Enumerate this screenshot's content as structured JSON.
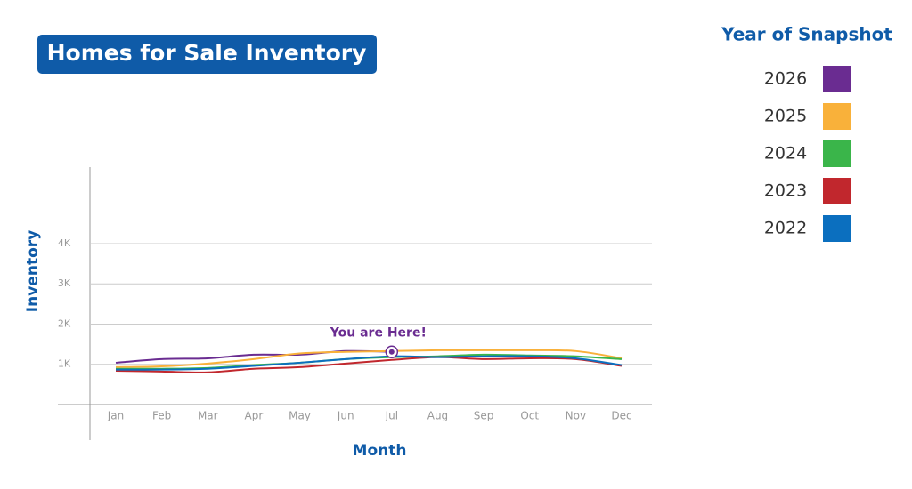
{
  "chart_data": {
    "type": "line",
    "title": "Homes for Sale Inventory",
    "legend_title": "Year of Snapshot",
    "x_label": "Month",
    "y_label": "Inventory",
    "annotation": "You are Here!",
    "categories": [
      "Jan",
      "Feb",
      "Mar",
      "Apr",
      "May",
      "Jun",
      "Jul",
      "Aug",
      "Sep",
      "Oct",
      "Nov",
      "Dec"
    ],
    "ylim": [
      0,
      5900
    ],
    "yticks": [
      {
        "value": 1000,
        "label": "1K"
      },
      {
        "value": 2000,
        "label": "2K"
      },
      {
        "value": 3000,
        "label": "3K"
      },
      {
        "value": 4000,
        "label": "4K"
      }
    ],
    "grid": true,
    "legend": "right",
    "series": [
      {
        "name": "2026",
        "color": "#6a2c91",
        "values": [
          1040,
          1130,
          1150,
          1240,
          1240,
          1330,
          1310,
          null,
          null,
          null,
          null,
          null
        ]
      },
      {
        "name": "2025",
        "color": "#f9b13a",
        "values": [
          930,
          950,
          1020,
          1130,
          1270,
          1310,
          1330,
          1350,
          1350,
          1350,
          1330,
          1150
        ]
      },
      {
        "name": "2024",
        "color": "#3ab54a",
        "values": [
          890,
          890,
          910,
          980,
          1040,
          1130,
          1180,
          1200,
          1240,
          1220,
          1200,
          1130
        ]
      },
      {
        "name": "2023",
        "color": "#c1272d",
        "values": [
          840,
          820,
          800,
          890,
          930,
          1020,
          1110,
          1180,
          1130,
          1150,
          1130,
          960
        ]
      },
      {
        "name": "2022",
        "color": "#0b6fbf",
        "values": [
          870,
          870,
          890,
          960,
          1040,
          1130,
          1200,
          1180,
          1200,
          1200,
          1150,
          980
        ]
      }
    ]
  }
}
